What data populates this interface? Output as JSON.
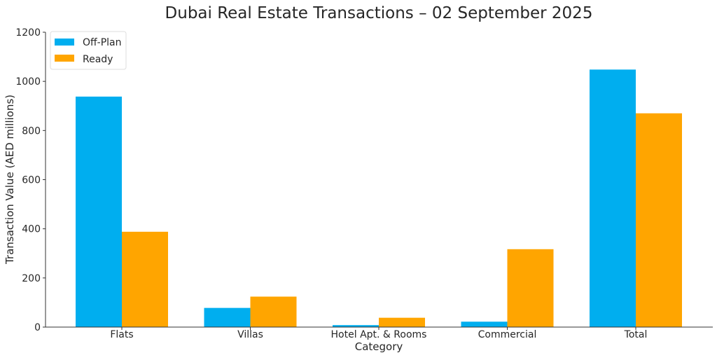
{
  "chart_data": {
    "type": "bar",
    "title": "Dubai Real Estate Transactions – 02 September 2025",
    "xlabel": "Category",
    "ylabel": "Transaction Value (AED millions)",
    "ylim": [
      0,
      1200
    ],
    "yticks": [
      0,
      200,
      400,
      600,
      800,
      1000,
      1200
    ],
    "grid": false,
    "legend_position": "top-left",
    "categories": [
      "Flats",
      "Villas",
      "Hotel Apt. & Rooms",
      "Commercial",
      "Total"
    ],
    "series": [
      {
        "name": "Off-Plan",
        "color": "#00AEEF",
        "values": [
          938,
          78,
          8,
          22,
          1048
        ]
      },
      {
        "name": "Ready",
        "color": "#FFA500",
        "values": [
          388,
          124,
          38,
          317,
          870
        ]
      }
    ]
  }
}
